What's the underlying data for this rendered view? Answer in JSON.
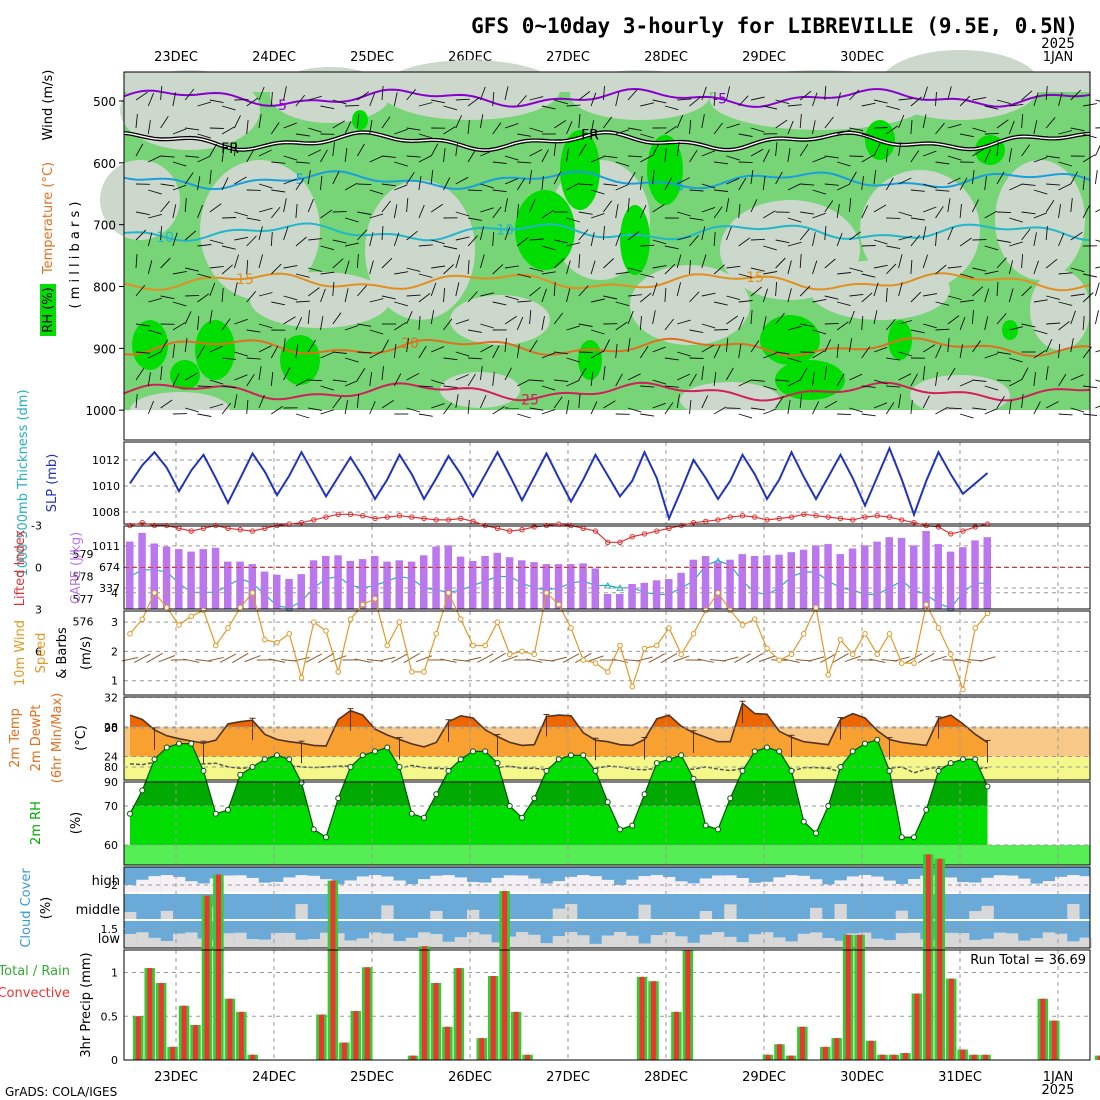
{
  "title": "GFS 0~10day 3-hourly for LIBREVILLE (9.5E, 0.5N)",
  "year_label": "2025",
  "footer": "GrADS: COLA/IGES",
  "dates": [
    "23DEC",
    "24DEC",
    "25DEC",
    "26DEC",
    "27DEC",
    "28DEC",
    "29DEC",
    "30DEC",
    "31DEC",
    "1JAN"
  ],
  "bottom_year": "2025",
  "colors": {
    "rh_dark": "#00dd00",
    "rh_mid": "#77d477",
    "rh_light": "#cdd8cd",
    "grid": "#999999"
  },
  "chart_data": [
    {
      "type": "heatmap",
      "panel": "upper-air",
      "ylabel_rh": "RH (%)",
      "ylabel_temp": "Temperature (°C)",
      "ylabel_wind": "Wind (m/s)",
      "ylabel_units": "( m i l l i b a r s )",
      "y_ticks": [
        500,
        600,
        700,
        800,
        900,
        1000
      ],
      "ylim": [
        1000,
        450
      ],
      "isotherms": [
        {
          "label": "-5",
          "pressure": 495,
          "color": "#8800cc"
        },
        {
          "label": "FR",
          "pressure": 565,
          "color": "#000000"
        },
        {
          "label": "5",
          "pressure": 628,
          "color": "#1a9fdd"
        },
        {
          "label": "10",
          "pressure": 712,
          "color": "#22b7c8"
        },
        {
          "label": "15",
          "pressure": 792,
          "color": "#e09020"
        },
        {
          "label": "20",
          "pressure": 898,
          "color": "#e07020"
        },
        {
          "label": "25",
          "pressure": 970,
          "color": "#d0205a"
        }
      ]
    },
    {
      "type": "line",
      "panel": "thickness-slp",
      "ylabel_left": "1000-500mb Thickness (dm)",
      "ylabel_right": "SLP (mb)",
      "thickness_ticks": [
        576,
        577,
        578,
        579
      ],
      "slp_ticks": [
        1008,
        1010,
        1012
      ],
      "series": [
        {
          "name": "SLP (mb)",
          "color": "#2233bb",
          "values": [
            1010.2,
            1011.6,
            1012.6,
            1011.4,
            1009.6,
            1011.2,
            1012.4,
            1010.6,
            1008.7,
            1010.6,
            1012.5,
            1011.1,
            1009.3,
            1010.8,
            1012.6,
            1010.9,
            1009.2,
            1010.7,
            1012.2,
            1010.7,
            1009.0,
            1010.5,
            1012.4,
            1010.9,
            1009.0,
            1010.6,
            1012.3,
            1010.9,
            1009.2,
            1010.9,
            1012.6,
            1010.8,
            1008.9,
            1010.7,
            1012.5,
            1010.6,
            1008.8,
            1010.5,
            1012.4,
            1010.8,
            1009.2,
            1010.4,
            1012.6,
            1010.6,
            1007.5,
            1009.7,
            1012.0,
            1010.6,
            1009.0,
            1010.4,
            1012.4,
            1010.9,
            1009.0,
            1010.5,
            1012.6,
            1010.7,
            1009.0,
            1010.7,
            1012.4,
            1010.6,
            1008.5,
            1010.7,
            1012.9,
            1010.5,
            1007.8,
            1010.4,
            1012.6,
            1010.9,
            1009.4,
            1010.2,
            1011.0
          ]
        },
        {
          "name": "1000-500mb Thickness (dm)",
          "color": "#22b0c0",
          "values": [
            578.0,
            578.3,
            578.3,
            578.2,
            577.7,
            577.3,
            577.3,
            577.3,
            577.6,
            577.9,
            577.7,
            577.2,
            576.7,
            576.6,
            576.9,
            577.5,
            577.9,
            578.0,
            577.6,
            577.5,
            577.6,
            577.8,
            578.0,
            577.9,
            577.5,
            577.4,
            577.3,
            577.4,
            577.6,
            577.8,
            578.0,
            578.0,
            577.7,
            577.5,
            577.4,
            577.5,
            577.7,
            577.8,
            577.6,
            577.6,
            577.5,
            577.5,
            577.3,
            577.2,
            577.2,
            577.5,
            577.8,
            578.5,
            578.7,
            578.5,
            577.8,
            577.3,
            577.2,
            577.5,
            578.0,
            578.2,
            578.2,
            577.8,
            577.5,
            577.4,
            577.2,
            577.2,
            577.5,
            577.8,
            577.4,
            577.2,
            576.8,
            576.6,
            577.3,
            577.7,
            577.7
          ]
        }
      ]
    },
    {
      "type": "bar",
      "panel": "cape-lifted-index",
      "ylabel_left": "Lifted Index",
      "ylabel_right": "CAPE (J/kg)",
      "li_ticks": [
        "-3",
        "0",
        "3",
        "6"
      ],
      "cape_ticks": [
        1011,
        674,
        337
      ],
      "li_threshold": 0,
      "series": [
        {
          "name": "CAPE (J/kg)",
          "color": "#bb77ee",
          "values": [
            1080,
            1220,
            1050,
            1000,
            960,
            920,
            960,
            980,
            760,
            760,
            720,
            600,
            550,
            480,
            560,
            780,
            850,
            860,
            770,
            800,
            850,
            760,
            780,
            760,
            860,
            1000,
            1020,
            840,
            770,
            850,
            900,
            830,
            780,
            750,
            720,
            720,
            720,
            730,
            650,
            240,
            240,
            400,
            420,
            460,
            480,
            580,
            790,
            850,
            750,
            790,
            880,
            850,
            860,
            870,
            910,
            950,
            1020,
            1040,
            880,
            970,
            1020,
            1080,
            1150,
            1140,
            1020,
            1250,
            1040,
            920,
            990,
            1100,
            1150
          ]
        },
        {
          "name": "Lifted Index",
          "color": "#dd3333",
          "values": [
            -3.0,
            -3.2,
            -3.0,
            -3.0,
            -2.8,
            -2.6,
            -2.8,
            -3.0,
            -2.8,
            -2.7,
            -2.6,
            -2.8,
            -3.0,
            -3.1,
            -3.2,
            -3.4,
            -3.6,
            -3.8,
            -3.8,
            -3.7,
            -3.5,
            -3.6,
            -3.7,
            -3.6,
            -3.5,
            -3.4,
            -3.4,
            -3.5,
            -3.3,
            -3.0,
            -2.8,
            -2.6,
            -2.7,
            -2.9,
            -3.0,
            -3.1,
            -3.0,
            -2.8,
            -2.6,
            -1.8,
            -1.8,
            -2.2,
            -2.4,
            -2.6,
            -2.8,
            -3.0,
            -3.2,
            -3.3,
            -3.4,
            -3.6,
            -3.7,
            -3.6,
            -3.4,
            -3.5,
            -3.6,
            -3.8,
            -3.7,
            -3.6,
            -3.5,
            -3.4,
            -3.6,
            -3.7,
            -3.6,
            -3.4,
            -3.2,
            -3.0,
            -2.9,
            -2.4,
            -2.6,
            -2.9,
            -3.1
          ]
        }
      ]
    },
    {
      "type": "line",
      "panel": "10m-wind",
      "ylabel": "10m Wind Speed (m/s) & Barbs",
      "y_ticks": [
        1,
        2,
        3,
        4
      ],
      "ylim": [
        0.5,
        4.5
      ],
      "series": [
        {
          "name": "10m Wind Speed",
          "color": "#e09a28",
          "values": [
            2.6,
            3.1,
            4.0,
            3.5,
            2.9,
            3.2,
            3.4,
            2.2,
            2.8,
            3.5,
            4.0,
            2.4,
            2.3,
            2.6,
            1.1,
            3.0,
            2.7,
            1.3,
            3.1,
            3.6,
            3.8,
            2.2,
            3.0,
            1.3,
            1.3,
            2.6,
            4.0,
            3.1,
            2.2,
            2.2,
            3.0,
            1.9,
            2.0,
            1.9,
            4.0,
            3.6,
            2.8,
            1.7,
            1.6,
            1.3,
            2.2,
            0.8,
            2.1,
            2.2,
            2.8,
            1.9,
            2.6,
            3.4,
            4.0,
            3.4,
            2.9,
            3.1,
            2.1,
            1.7,
            1.9,
            2.6,
            3.5,
            1.2,
            2.4,
            1.9,
            2.6,
            1.9,
            2.6,
            1.6,
            1.6,
            3.6,
            2.8,
            1.9,
            0.7,
            2.8,
            3.3
          ]
        }
      ]
    },
    {
      "type": "area",
      "panel": "2m-temperature",
      "ylabel": "2m Temp 2m DewPt (6hr Min/Max) (°C)",
      "y_ticks": [
        24,
        28,
        32
      ],
      "ylim": [
        21,
        32
      ],
      "series": [
        {
          "name": "2m Temp",
          "color": "#ee8822",
          "values": [
            29.6,
            29.0,
            27.6,
            26.8,
            26.4,
            26.1,
            25.8,
            26.2,
            28.4,
            28.7,
            28.9,
            27.0,
            26.3,
            26.0,
            25.8,
            25.5,
            25.4,
            29.0,
            30.2,
            29.6,
            27.7,
            26.9,
            26.3,
            25.7,
            25.3,
            25.9,
            28.7,
            29.5,
            29.2,
            27.6,
            26.7,
            25.9,
            25.5,
            25.6,
            29.4,
            29.6,
            29.5,
            27.2,
            26.2,
            26.0,
            25.6,
            25.5,
            26.3,
            29.1,
            29.6,
            28.1,
            27.2,
            26.6,
            26.0,
            26.0,
            31.2,
            29.8,
            29.7,
            27.4,
            26.6,
            26.0,
            25.8,
            25.6,
            29.0,
            29.8,
            29.2,
            27.5,
            26.3,
            25.9,
            25.7,
            25.5,
            29.1,
            29.6,
            28.4,
            27.0,
            25.9
          ]
        },
        {
          "name": "2m DewPt",
          "color": "#555555",
          "values": [
            23.0,
            22.9,
            23.2,
            23.1,
            22.8,
            22.9,
            23.0,
            23.1,
            22.6,
            22.4,
            22.5,
            22.6,
            22.8,
            22.8,
            22.6,
            22.5,
            22.6,
            22.7,
            22.7,
            22.6,
            22.4,
            22.3,
            22.4,
            22.8,
            22.5,
            22.4,
            22.3,
            22.3,
            22.6,
            22.4,
            22.5,
            22.7,
            22.4,
            22.4,
            22.2,
            22.4,
            22.3,
            22.4,
            22.4,
            22.7,
            22.6,
            22.3,
            22.2,
            22.4,
            22.1,
            22.2,
            22.3,
            22.6,
            22.3,
            22.1,
            22.4,
            22.6,
            22.4,
            22.3,
            22.0,
            22.5,
            22.5,
            22.4,
            21.9,
            22.3,
            22.6,
            22.5,
            22.4,
            22.6,
            21.8,
            22.3,
            22.6,
            22.7,
            22.2,
            22.3,
            22.5
          ]
        }
      ]
    },
    {
      "type": "area",
      "panel": "2m-rh",
      "ylabel": "2m RH (%)",
      "y_ticks": [
        60,
        70,
        80,
        90
      ],
      "ylim": [
        53,
        90
      ],
      "series": [
        {
          "name": "2m RH",
          "color": "#00bb00",
          "values": [
            68,
            74,
            82,
            85,
            86,
            86,
            79,
            68,
            69,
            78,
            80,
            82,
            83,
            82,
            76,
            64,
            62,
            72,
            80,
            83,
            84,
            85,
            80,
            68,
            67,
            73,
            79,
            82,
            84,
            84,
            81,
            70,
            67,
            72,
            79,
            82,
            83,
            83,
            79,
            71,
            64,
            65,
            73,
            81,
            82,
            83,
            77,
            65,
            64,
            72,
            79,
            84,
            85,
            84,
            79,
            66,
            63,
            70,
            80,
            84,
            86,
            87,
            79,
            62,
            62,
            69,
            79,
            81,
            82,
            82,
            75
          ]
        }
      ]
    },
    {
      "type": "heatmap",
      "panel": "cloud-cover",
      "ylabel": "Cloud Cover (%)",
      "rows": [
        "high",
        "middle",
        "low"
      ]
    },
    {
      "type": "bar",
      "panel": "precip",
      "ylabel_left": "Total / Rain",
      "ylabel_left2": "Convective",
      "ylabel": "3hr Precip (mm)",
      "y_ticks": [
        0,
        0.5,
        1,
        1.5,
        2
      ],
      "ylim": [
        0,
        2.4
      ],
      "annotation": "Run Total = 36.69",
      "series": [
        {
          "name": "Total / Rain",
          "color": "#33cc33",
          "values": [
            0.5,
            1.05,
            0.88,
            0.15,
            0.62,
            0.4,
            1.88,
            2.12,
            0.7,
            0.55,
            0.06,
            0,
            0,
            0,
            0,
            0,
            0.52,
            2.05,
            0.2,
            0.56,
            1.06,
            0,
            0,
            0,
            0.05,
            1.3,
            0.88,
            0.38,
            1.05,
            0,
            0.25,
            0.96,
            1.93,
            0.55,
            0.06,
            0,
            0,
            0,
            0,
            0,
            0,
            0,
            0,
            0,
            0.95,
            0.9,
            0,
            0.55,
            1.26,
            0,
            0,
            0,
            0,
            0,
            0,
            0.06,
            0.18,
            0.05,
            0.38,
            0,
            0.15,
            0.25,
            1.43,
            1.43,
            0.22,
            0.06,
            0.06,
            0.08,
            0.76,
            2.35,
            2.3,
            0.93,
            0.12,
            0.06,
            0.06,
            0,
            0,
            0,
            0,
            0.7,
            0.45,
            0,
            0,
            0,
            0.05,
            0
          ]
        }
      ]
    }
  ]
}
